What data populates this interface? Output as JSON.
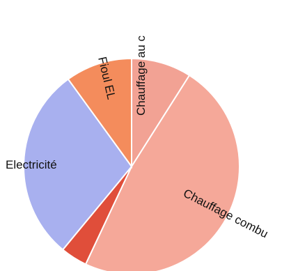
{
  "chart_data": {
    "type": "pie",
    "title": "",
    "slices": [
      {
        "label": "Chauffage au c",
        "value": 9,
        "color": "#f2a294"
      },
      {
        "label": "Chauffage combu",
        "value": 48,
        "color": "#f5a899"
      },
      {
        "label": "",
        "value": 4,
        "color": "#e04e3a"
      },
      {
        "label": "Electricité",
        "value": 29,
        "color": "#a8b0ef"
      },
      {
        "label": "Fioul EL",
        "value": 10,
        "color": "#f48c5c"
      }
    ]
  }
}
